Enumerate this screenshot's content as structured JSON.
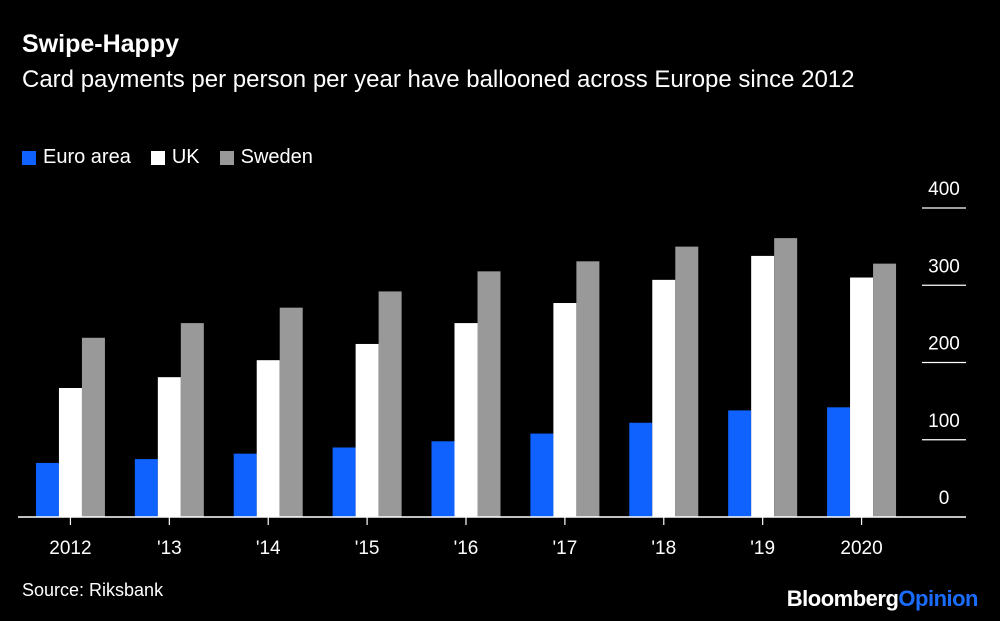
{
  "chart_data": {
    "type": "bar",
    "title": "Swipe-Happy",
    "subtitle": "Card payments per person per year have ballooned across Europe since 2012",
    "categories": [
      "2012",
      "'13",
      "'14",
      "'15",
      "'16",
      "'17",
      "'18",
      "'19",
      "2020"
    ],
    "series": [
      {
        "name": "Euro area",
        "color": "#0f62fe",
        "values": [
          70,
          75,
          82,
          90,
          98,
          108,
          122,
          138,
          142
        ]
      },
      {
        "name": "UK",
        "color": "#ffffff",
        "values": [
          167,
          181,
          203,
          224,
          251,
          277,
          307,
          338,
          310
        ]
      },
      {
        "name": "Sweden",
        "color": "#999999",
        "values": [
          232,
          251,
          271,
          292,
          318,
          331,
          350,
          361,
          328
        ]
      }
    ],
    "y_ticks": [
      "400",
      "300",
      "200",
      "100",
      "0"
    ],
    "y_tick_values": [
      400,
      300,
      200,
      100,
      0
    ],
    "ylim": [
      0,
      400
    ],
    "xlabel": "",
    "ylabel": "",
    "legend_position": "top-left",
    "source": "Source: Riksbank"
  },
  "brand": {
    "part1": "Bloomberg",
    "part2": "Opinion"
  },
  "colors": {
    "background": "#000000",
    "axis": "#ffffff",
    "accent": "#1a6cff"
  }
}
